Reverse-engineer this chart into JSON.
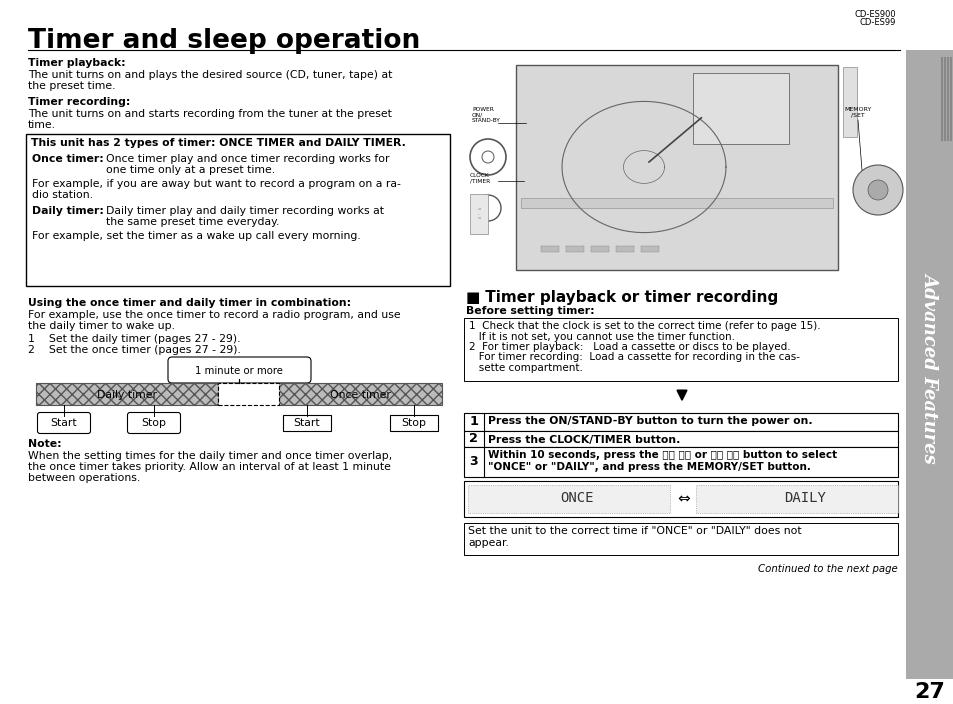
{
  "title": "Timer and sleep operation",
  "model_top_right": "CD-ES900\nCD-ES99",
  "page_number": "27",
  "bg_color": "#ffffff",
  "sidebar_text": "Advanced Features",
  "left_col": {
    "timer_playback_bold": "Timer playback:",
    "timer_playback_text": "The unit turns on and plays the desired source (CD, tuner, tape) at\nthe preset time.",
    "timer_recording_bold": "Timer recording:",
    "timer_recording_text": "The unit turns on and starts recording from the tuner at the preset\ntime.",
    "box_bold": "This unit has 2 types of timer: ONCE TIMER and DAILY TIMER.",
    "once_timer_bold": "Once timer:",
    "once_timer_text1": "Once timer play and once timer recording works for",
    "once_timer_text2": "one time only at a preset time.",
    "once_example1": "For example, if you are away but want to record a program on a ra-",
    "once_example2": "dio station.",
    "daily_timer_bold": "Daily timer:",
    "daily_timer_text1": "Daily timer play and daily timer recording works at",
    "daily_timer_text2": "the same preset time everyday.",
    "daily_example": "For example, set the timer as a wake up call every morning.",
    "combination_bold": "Using the once timer and daily timer in combination:",
    "combination_text1": "For example, use the once timer to record a radio program, and use",
    "combination_text2": "the daily timer to wake up.",
    "step1": "1    Set the daily timer (pages 27 - 29).",
    "step2": "2    Set the once timer (pages 27 - 29).",
    "diagram_label": "1 minute or more",
    "daily_timer_label": "Daily timer",
    "once_timer_label": "Once timer",
    "start1": "Start",
    "stop1": "Stop",
    "start2": "Start",
    "stop2": "Stop",
    "note_bold": "Note:",
    "note_text1": "When the setting times for the daily timer and once timer overlap,",
    "note_text2": "the once timer takes priority. Allow an interval of at least 1 minute",
    "note_text3": "between operations."
  },
  "right_col": {
    "section_square": "■",
    "section_title": " Timer playback or timer recording",
    "before_bold": "Before setting timer:",
    "b1_1": "1  Check that the clock is set to the correct time (refer to page 15).",
    "b1_2": "   If it is not set, you cannot use the timer function.",
    "b2_1": "2  For timer playback:   Load a cassette or discs to be played.",
    "b2_2": "   For timer recording:  Load a cassette for recording in the cas-",
    "b2_3": "   sette compartment.",
    "step1_num": "1",
    "step1_text": " Press the ON/STAND-BY button to turn the power on.",
    "step2_num": "2",
    "step2_text": " Press the CLOCK/TIMER button.",
    "step3_num": "3",
    "step3_text1": " Within 10 seconds, press the ⏮⏪ ⏪⏪ or ⏩⏩ ⏩⏭ button to select",
    "step3_text2": " \"ONCE\" or \"DAILY\", and press the MEMORY/SET button.",
    "display_once": "ONCE",
    "display_arrow": "⇔",
    "display_daily": "DAILY",
    "display_note1": "Set the unit to the correct time if \"ONCE\" or \"DAILY\" does not",
    "display_note2": "appear.",
    "continued": "Continued to the next page"
  }
}
